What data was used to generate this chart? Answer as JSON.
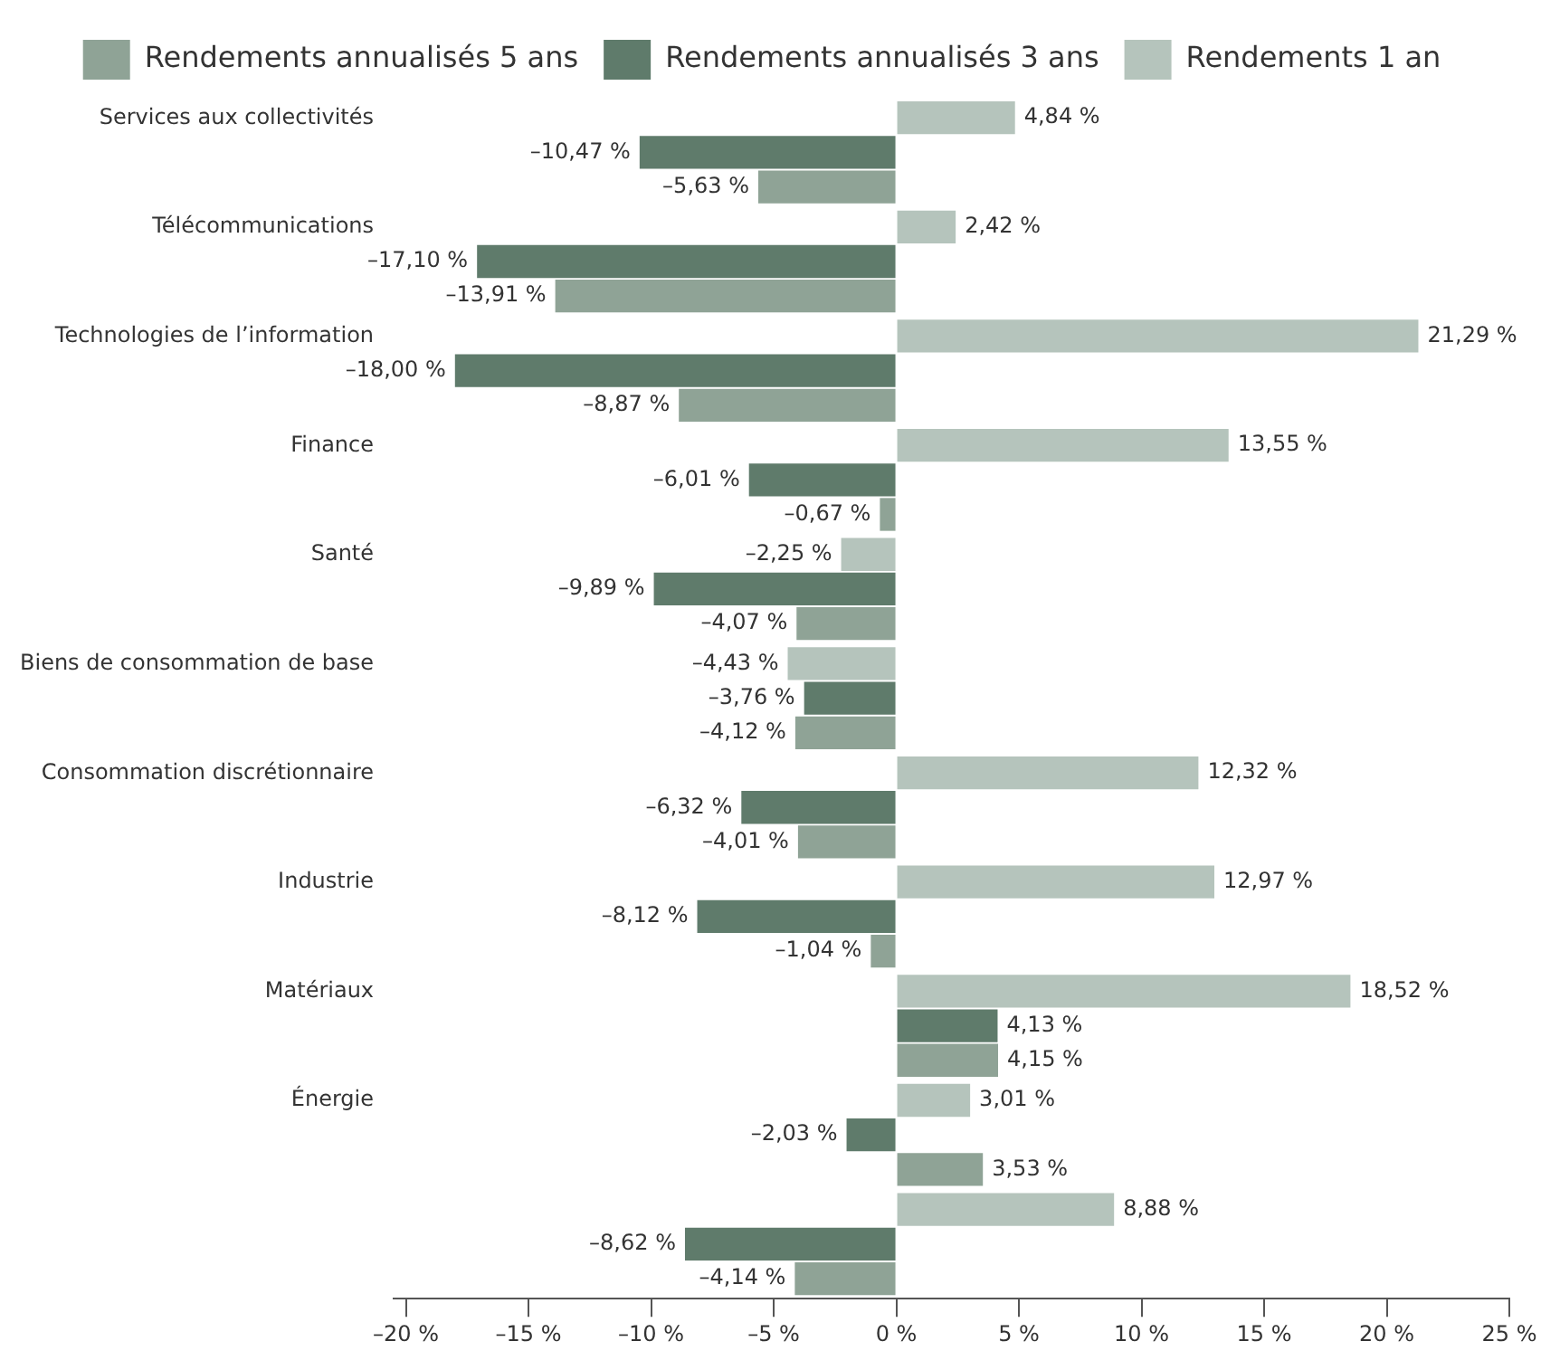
{
  "chart_data": {
    "type": "bar",
    "orientation": "horizontal",
    "categories": [
      "Services aux collectivités",
      "Télécommunications",
      "Technologies de l’information",
      "Finance",
      "Santé",
      "Biens de consommation de base",
      "Consommation discrétionnaire",
      "Industrie",
      "Matériaux",
      "Énergie",
      null
    ],
    "series": [
      {
        "name": "Rendements 1 an",
        "color": "#b5c4bc",
        "values": [
          4.84,
          2.42,
          21.29,
          13.55,
          -2.25,
          -4.43,
          12.32,
          12.97,
          18.52,
          3.01,
          8.88
        ],
        "value_labels": [
          "4,84 %",
          "2,42 %",
          "21,29 %",
          "13,55 %",
          "–2,25 %",
          "–4,43 %",
          "12,32 %",
          "12,97 %",
          "18,52 %",
          "3,01 %",
          "8,88 %"
        ]
      },
      {
        "name": "Rendements annualisés 3 ans",
        "color": "#5f7b6b",
        "values": [
          -10.47,
          -17.1,
          -18.0,
          -6.01,
          -9.89,
          -3.76,
          -6.32,
          -8.12,
          4.13,
          -2.03,
          -8.62
        ],
        "value_labels": [
          "–10,47 %",
          "–17,10 %",
          "–18,00 %",
          "–6,01 %",
          "–9,89 %",
          "–3,76 %",
          "–6,32 %",
          "–8,12 %",
          "4,13 %",
          "–2,03 %",
          "–8,62 %"
        ]
      },
      {
        "name": "Rendements annualisés 5 ans",
        "color": "#8fa396",
        "values": [
          -5.63,
          -13.91,
          -8.87,
          -0.67,
          -4.07,
          -4.12,
          -4.01,
          -1.04,
          4.15,
          3.53,
          -4.14
        ],
        "value_labels": [
          "–5,63 %",
          "–13,91 %",
          "–8,87 %",
          "–0,67 %",
          "–4,07 %",
          "–4,12 %",
          "–4,01 %",
          "–1,04 %",
          "4,15 %",
          "3,53 %",
          "–4,14 %"
        ]
      }
    ],
    "xlim": [
      -20.5,
      25
    ],
    "xticks": [
      {
        "value": -20,
        "label": "–20 %"
      },
      {
        "value": -15,
        "label": "–15 %"
      },
      {
        "value": -10,
        "label": "–10 %"
      },
      {
        "value": -5,
        "label": "–5 %"
      },
      {
        "value": 0,
        "label": "0 %"
      },
      {
        "value": 5,
        "label": "5 %"
      },
      {
        "value": 10,
        "label": "10 %"
      },
      {
        "value": 15,
        "label": "15 %"
      },
      {
        "value": 20,
        "label": "20 %"
      },
      {
        "value": 25,
        "label": "25 %"
      }
    ],
    "grid": false,
    "legend": "top"
  }
}
